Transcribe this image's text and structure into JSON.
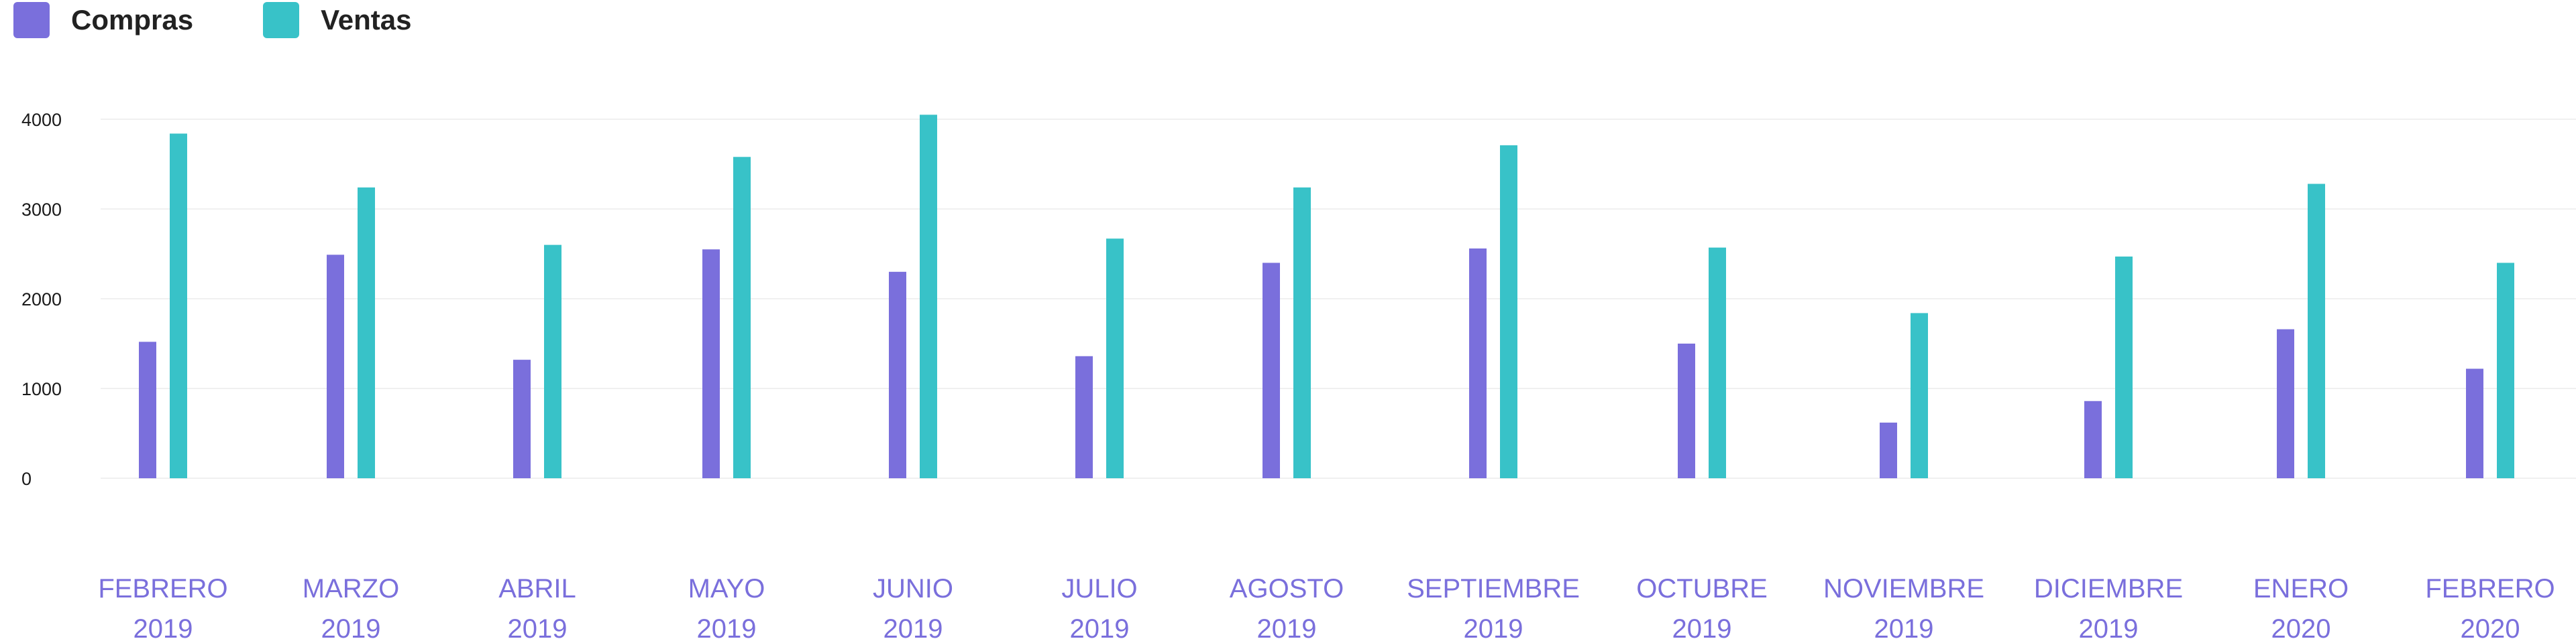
{
  "chart_data": {
    "type": "bar",
    "categories": [
      [
        "FEBRERO",
        "2019"
      ],
      [
        "MARZO",
        "2019"
      ],
      [
        "ABRIL",
        "2019"
      ],
      [
        "MAYO",
        "2019"
      ],
      [
        "JUNIO",
        "2019"
      ],
      [
        "JULIO",
        "2019"
      ],
      [
        "AGOSTO",
        "2019"
      ],
      [
        "SEPTIEMBRE",
        "2019"
      ],
      [
        "OCTUBRE",
        "2019"
      ],
      [
        "NOVIEMBRE",
        "2019"
      ],
      [
        "DICIEMBRE",
        "2019"
      ],
      [
        "ENERO",
        "2020"
      ],
      [
        "FEBRERO",
        "2020"
      ]
    ],
    "series": [
      {
        "name": "Compras",
        "color": "#7a6fdc",
        "values": [
          1520,
          2490,
          1320,
          2550,
          2300,
          1360,
          2400,
          2560,
          1500,
          620,
          860,
          1660,
          1220
        ]
      },
      {
        "name": "Ventas",
        "color": "#38c2c8",
        "values": [
          3840,
          3240,
          2600,
          3580,
          4050,
          2670,
          3240,
          3710,
          2570,
          1840,
          2470,
          3280,
          2400
        ]
      }
    ],
    "yticks": [
      0,
      1000,
      2000,
      3000,
      4000
    ],
    "ylim": [
      0,
      4000
    ],
    "grid": true,
    "legend_position": "top-left",
    "title": "",
    "xlabel": "",
    "ylabel": ""
  }
}
